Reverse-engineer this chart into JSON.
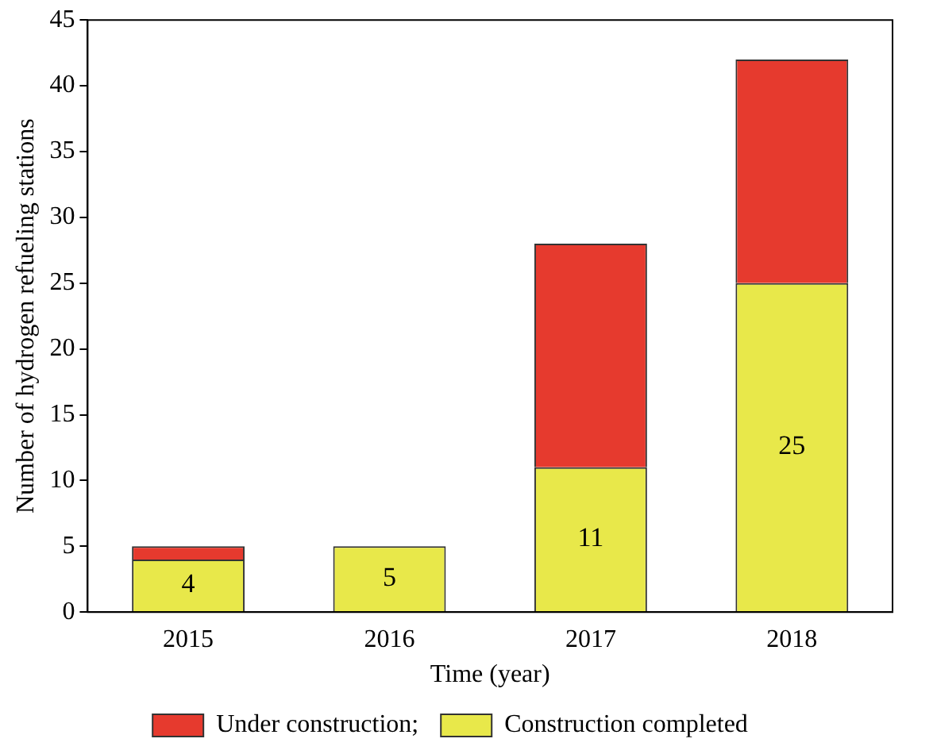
{
  "chart_data": {
    "type": "bar",
    "stacked": true,
    "xlabel": "Time (year)",
    "ylabel": "Number of hydrogen refueling stations",
    "categories": [
      "2015",
      "2016",
      "2017",
      "2018"
    ],
    "series": [
      {
        "name": "Construction completed",
        "color": "#e8e84a",
        "values": [
          4,
          5,
          11,
          25
        ],
        "value_labels": [
          "4",
          "5",
          "11",
          "25"
        ]
      },
      {
        "name": "Under construction;",
        "color": "#e63a2e",
        "values": [
          1,
          0,
          17,
          17
        ]
      }
    ],
    "ylim": [
      0,
      45
    ],
    "yticks": [
      0,
      5,
      10,
      15,
      20,
      25,
      30,
      35,
      40,
      45
    ],
    "grid": false,
    "legend": "bottom"
  }
}
